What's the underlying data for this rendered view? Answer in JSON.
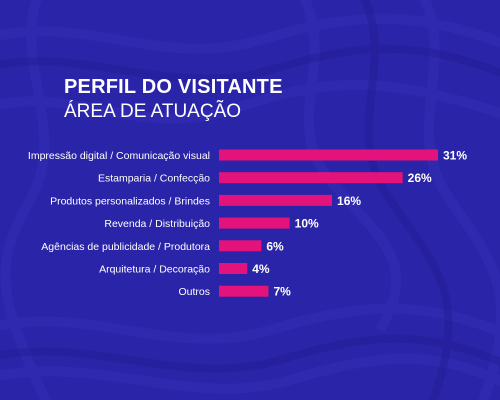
{
  "title": "PERFIL DO VISITANTE",
  "subtitle": "ÁREA DE ATUAÇÃO",
  "colors": {
    "background": "#2a24a8",
    "bar": "#e4137b",
    "text": "#ffffff"
  },
  "chart_data": {
    "type": "bar",
    "orientation": "horizontal",
    "categories": [
      "Impressão digital / Comunicação visual",
      "Estamparia / Confecção",
      "Produtos personalizados / Brindes",
      "Revenda / Distribuição",
      "Agências de publicidade / Produtora",
      "Arquitetura / Decoração",
      "Outros"
    ],
    "values": [
      31,
      26,
      16,
      10,
      6,
      4,
      7
    ],
    "value_labels": [
      "31%",
      "26%",
      "16%",
      "10%",
      "6%",
      "4%",
      "7%"
    ],
    "xlim": [
      0,
      31
    ],
    "grid": false,
    "legend": "none"
  }
}
